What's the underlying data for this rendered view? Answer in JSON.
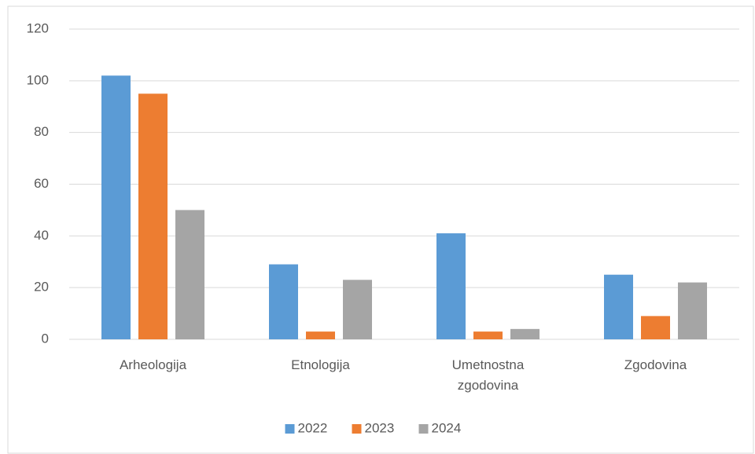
{
  "chart_data": {
    "type": "bar",
    "categories": [
      "Arheologija",
      "Etnologija",
      "Umetnostna zgodovina",
      "Zgodovina"
    ],
    "series": [
      {
        "name": "2022",
        "color": "#5b9bd5",
        "values": [
          102,
          29,
          41,
          25
        ]
      },
      {
        "name": "2023",
        "color": "#ed7d31",
        "values": [
          95,
          3,
          3,
          9
        ]
      },
      {
        "name": "2024",
        "color": "#a5a5a5",
        "values": [
          50,
          23,
          4,
          22
        ]
      }
    ],
    "ylim": [
      0,
      120
    ],
    "yticks": [
      0,
      20,
      40,
      60,
      80,
      100,
      120
    ],
    "grid": true,
    "legend": "bottom"
  }
}
